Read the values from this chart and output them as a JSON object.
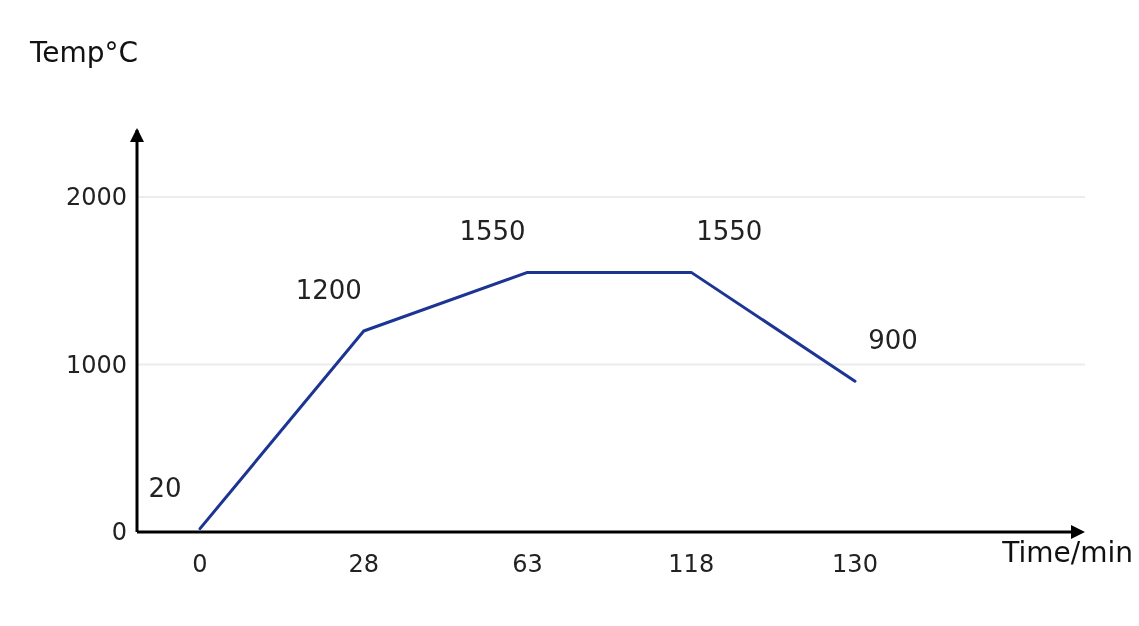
{
  "chart_data": {
    "type": "line",
    "xlabel": "Time/min",
    "ylabel": "Temp°C",
    "categories": [
      "0",
      "28",
      "63",
      "118",
      "130"
    ],
    "series": [
      {
        "color": "#1c3592",
        "values": [
          20,
          1200,
          1550,
          1550,
          900
        ]
      }
    ],
    "ylim": [
      0,
      2400
    ],
    "yticks": [
      0,
      1000,
      2000
    ],
    "grid": "y",
    "data_labels": true,
    "marker": "none",
    "line_style": "solid"
  }
}
